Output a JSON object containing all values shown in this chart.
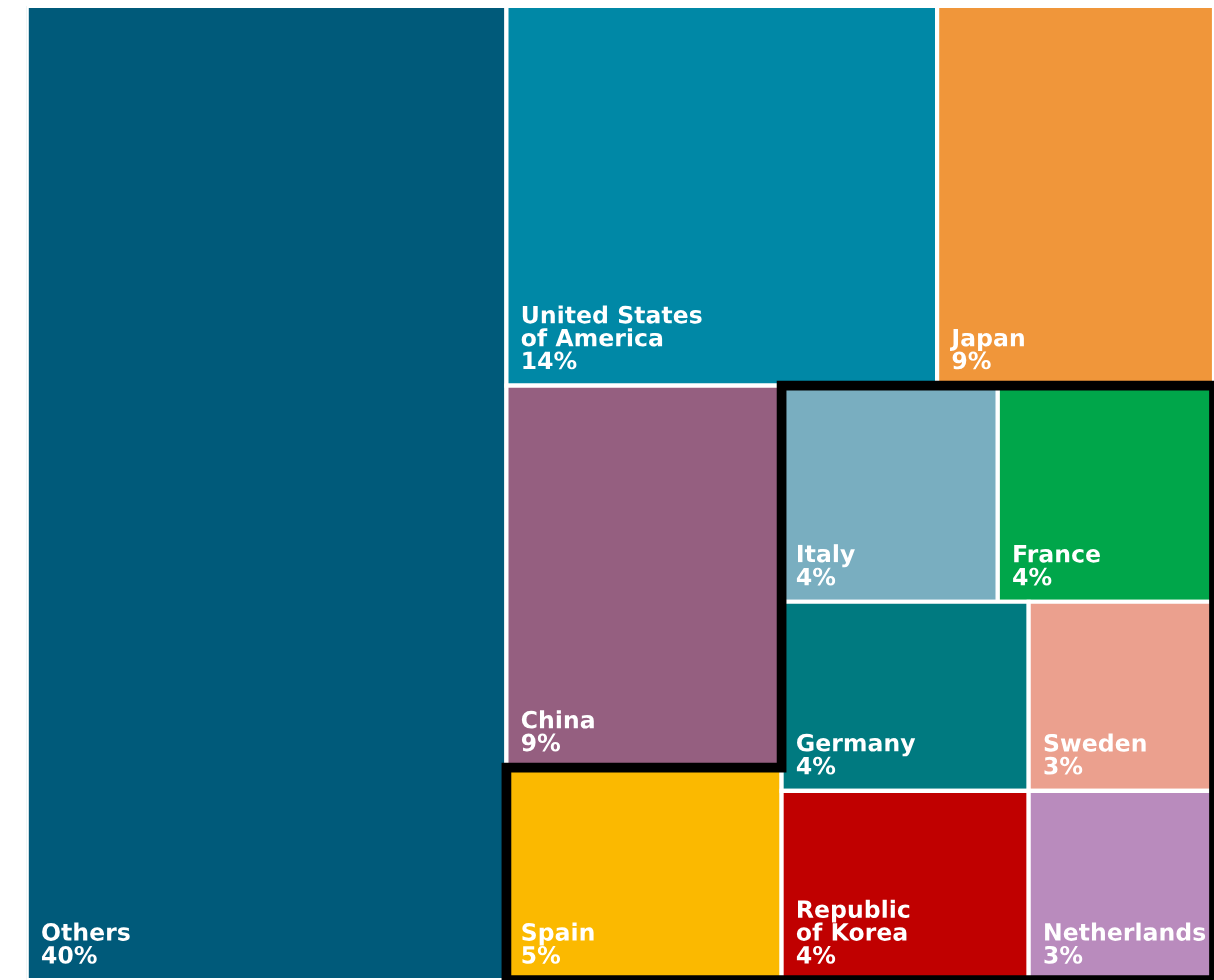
{
  "chart_data": {
    "type": "other",
    "categories": [
      "Others",
      "United States\nof America",
      "Japan",
      "China",
      "Spain",
      "Italy",
      "France",
      "Germany",
      "Sweden",
      "Republic\nof Korea",
      "Netherlands"
    ],
    "values": [
      40,
      14,
      9,
      9,
      5,
      4,
      4,
      4,
      3,
      4,
      3
    ],
    "value_labels": [
      "40%",
      "14%",
      "9%",
      "9%",
      "5%",
      "4%",
      "4%",
      "4%",
      "3%",
      "4%",
      "3%"
    ],
    "colors": [
      "#005a7a",
      "#0088a6",
      "#f0963a",
      "#955f80",
      "#fbb900",
      "#79aec0",
      "#00a64a",
      "#007a80",
      "#eba08e",
      "#c00000",
      "#b98bbd"
    ]
  }
}
